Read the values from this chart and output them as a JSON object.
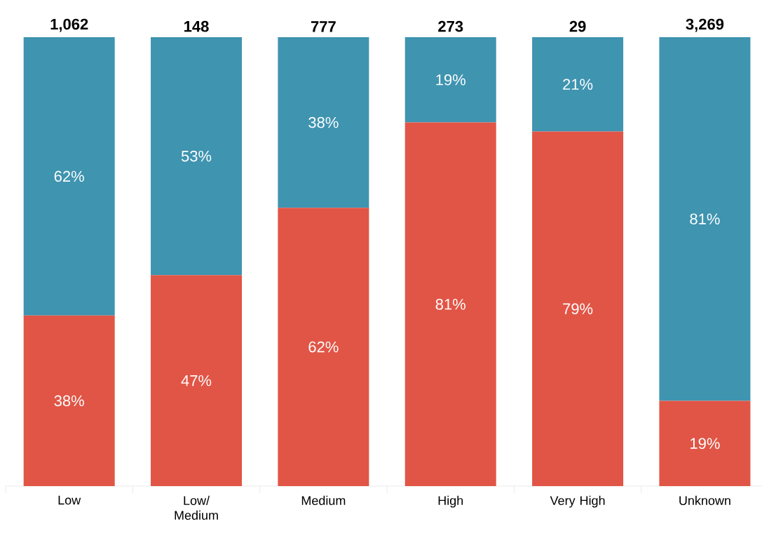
{
  "chart_data": {
    "type": "bar",
    "stacked": true,
    "categories": [
      "Low",
      "Low/ Medium",
      "Medium",
      "High",
      "Very High",
      "Unknown"
    ],
    "series": [
      {
        "color": "#e15546",
        "values": [
          38,
          47,
          62,
          81,
          79,
          19
        ],
        "value_labels": [
          "38%",
          "47%",
          "62%",
          "81%",
          "79%",
          "19%"
        ]
      },
      {
        "color": "#3f94b0",
        "values": [
          62,
          53,
          38,
          19,
          21,
          81
        ],
        "value_labels": [
          "62%",
          "53%",
          "38%",
          "19%",
          "21%",
          "81%"
        ]
      }
    ],
    "tick_labels": "x",
    "annotations": [
      "1,062",
      "148",
      "777",
      "273",
      "29",
      "3,269"
    ]
  }
}
